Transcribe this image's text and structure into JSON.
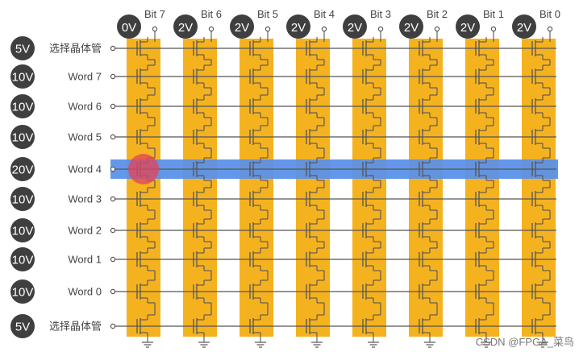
{
  "bits": [
    {
      "label": "Bit 7",
      "voltage": "0V"
    },
    {
      "label": "Bit 6",
      "voltage": "2V"
    },
    {
      "label": "Bit 5",
      "voltage": "2V"
    },
    {
      "label": "Bit 4",
      "voltage": "2V"
    },
    {
      "label": "Bit 3",
      "voltage": "2V"
    },
    {
      "label": "Bit 2",
      "voltage": "2V"
    },
    {
      "label": "Bit 1",
      "voltage": "2V"
    },
    {
      "label": "Bit 0",
      "voltage": "2V"
    }
  ],
  "rows": [
    {
      "label": "选择晶体管",
      "voltage": "5V"
    },
    {
      "label": "Word 7",
      "voltage": "10V"
    },
    {
      "label": "Word 6",
      "voltage": "10V"
    },
    {
      "label": "Word 5",
      "voltage": "10V"
    },
    {
      "label": "Word 4",
      "voltage": "20V",
      "selected": true
    },
    {
      "label": "Word 3",
      "voltage": "10V"
    },
    {
      "label": "Word 2",
      "voltage": "10V"
    },
    {
      "label": "Word 1",
      "voltage": "10V"
    },
    {
      "label": "Word 0",
      "voltage": "10V"
    },
    {
      "label": "选择晶体管",
      "voltage": "5V"
    }
  ],
  "selected_cell": {
    "bit": "Bit 7",
    "word": "Word 4"
  },
  "watermark": "CSDN @FPGA_菜鸟",
  "colors": {
    "column": "#F5B21F",
    "highlight": "#5B91E8",
    "badge": "#3F3F3F",
    "badge_text": "#ffffff",
    "line": "#555555",
    "target": "#E0455A"
  }
}
